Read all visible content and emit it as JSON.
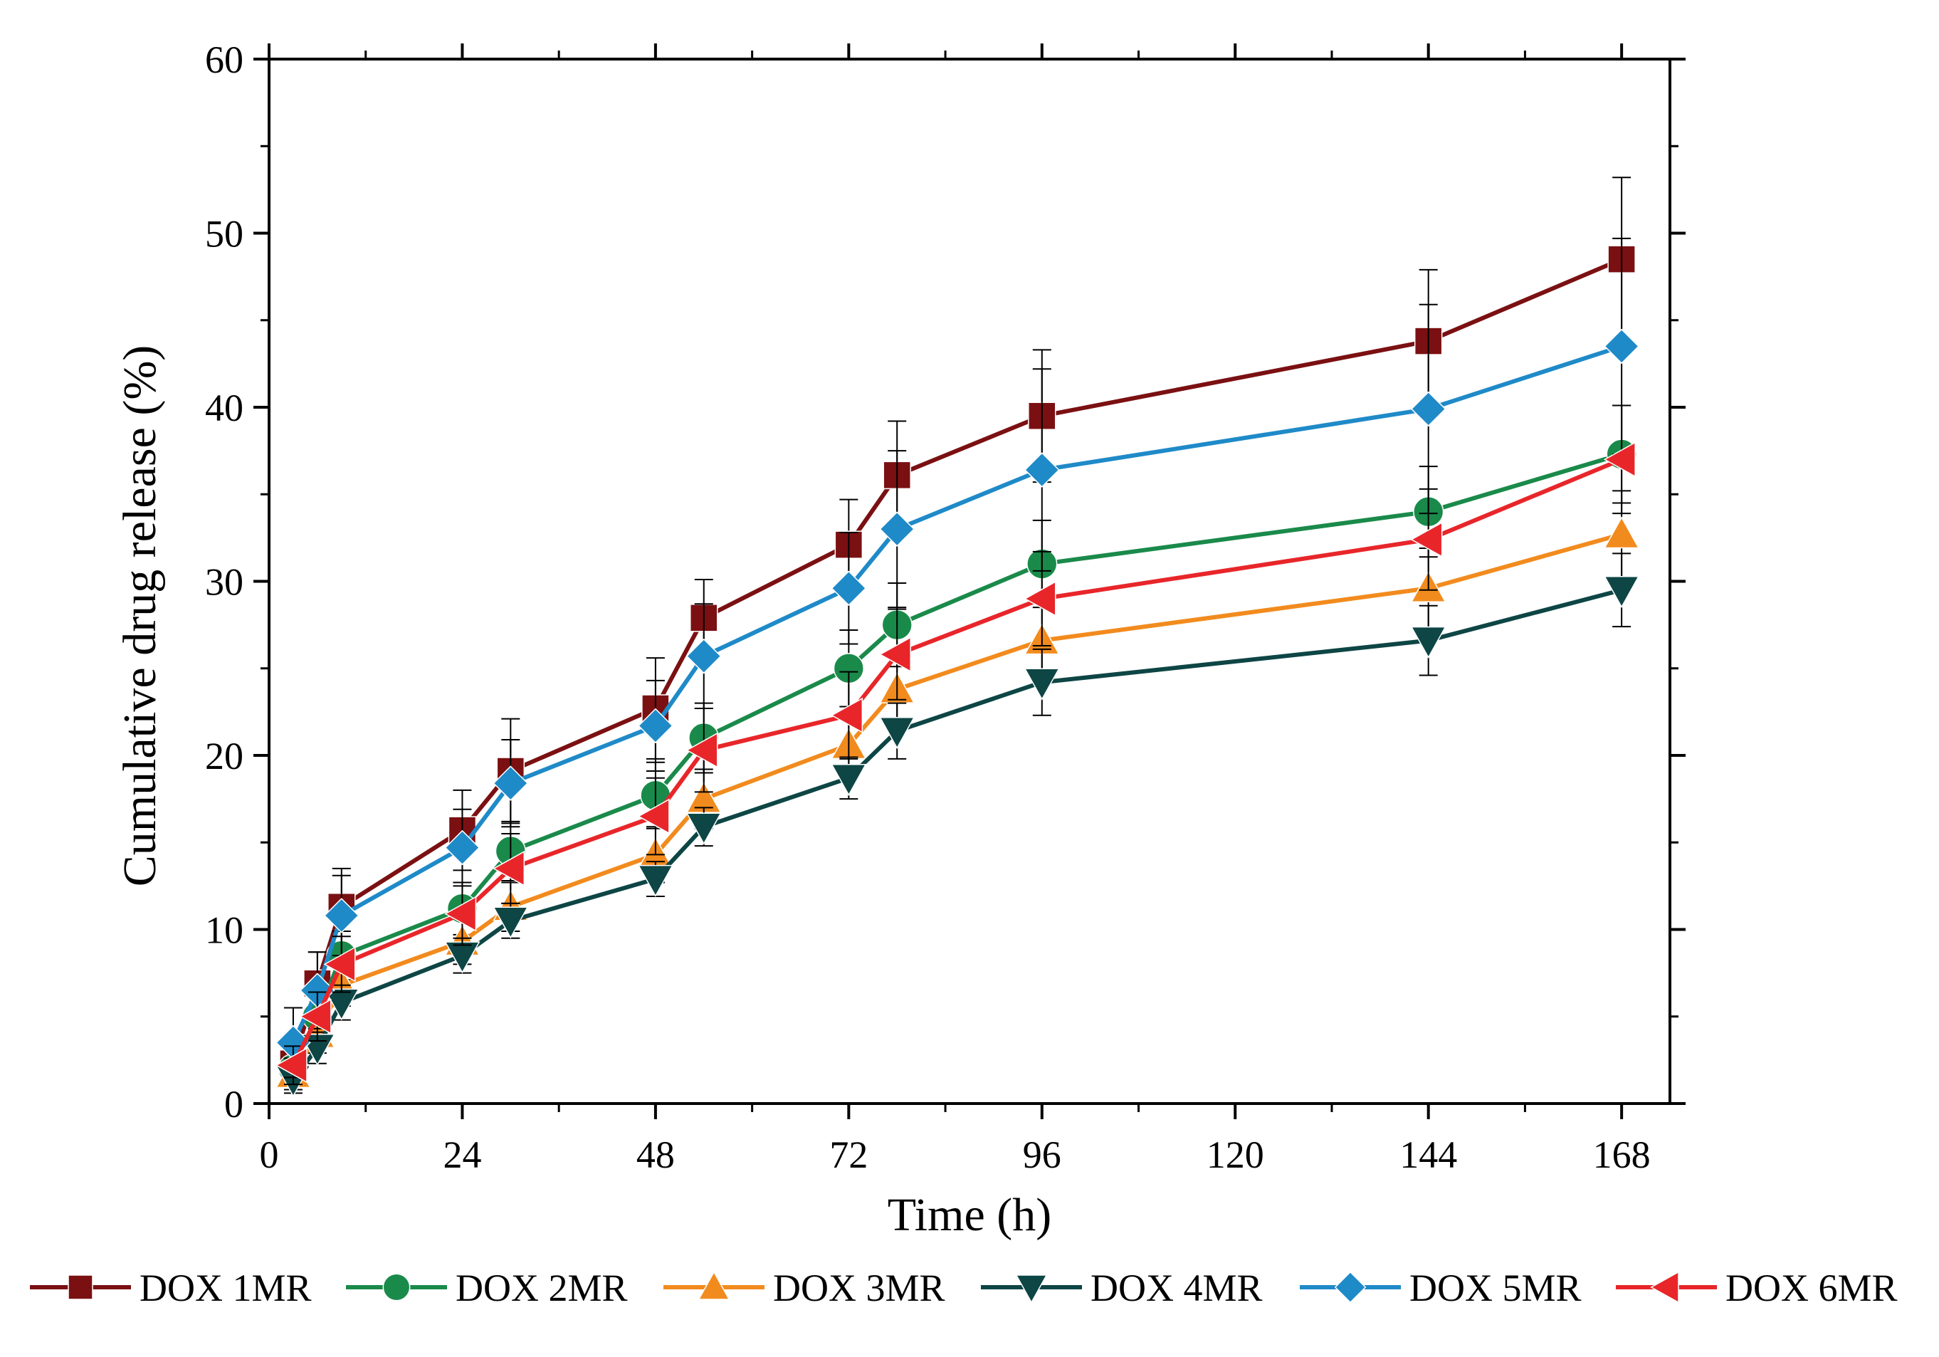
{
  "chart_data": {
    "type": "line",
    "title": "",
    "xlabel": "Time (h)",
    "ylabel": "Cumulative drug release (%)",
    "xlim": [
      0,
      174
    ],
    "ylim": [
      0,
      60
    ],
    "xticks": [
      0,
      24,
      48,
      72,
      96,
      120,
      144,
      168
    ],
    "yticks": [
      0,
      10,
      20,
      30,
      40,
      50,
      60
    ],
    "xtick_labels": [
      "0",
      "24",
      "48",
      "72",
      "96",
      "120",
      "144",
      "168"
    ],
    "ytick_labels": [
      "0",
      "10",
      "20",
      "30",
      "40",
      "50",
      "60"
    ],
    "grid": false,
    "legend_position": "bottom",
    "x": [
      3,
      6,
      9,
      24,
      30,
      48,
      54,
      72,
      78,
      96,
      144,
      168
    ],
    "series": [
      {
        "name": "DOX 1MR",
        "color": "#7b1012",
        "marker": "square",
        "values": [
          2.3,
          6.9,
          11.3,
          15.7,
          19.1,
          22.7,
          27.9,
          32.1,
          36.1,
          39.5,
          43.8,
          48.5
        ],
        "errors": [
          1.2,
          1.8,
          2.2,
          2.3,
          3.0,
          2.9,
          2.2,
          2.6,
          3.1,
          3.8,
          4.1,
          4.7
        ]
      },
      {
        "name": "DOX 2MR",
        "color": "#1a8a4a",
        "marker": "circle",
        "values": [
          2.0,
          5.0,
          8.5,
          11.2,
          14.5,
          17.7,
          21.0,
          25.0,
          27.5,
          31.0,
          34.0,
          37.3
        ],
        "errors": [
          1.0,
          1.3,
          1.4,
          1.5,
          1.7,
          1.9,
          2.0,
          2.2,
          2.4,
          2.5,
          2.6,
          2.8
        ]
      },
      {
        "name": "DOX 3MR",
        "color": "#f28b1e",
        "marker": "triangle-up",
        "values": [
          1.7,
          4.0,
          6.8,
          9.3,
          11.3,
          14.3,
          17.5,
          20.6,
          23.8,
          26.6,
          29.6,
          32.7
        ],
        "errors": [
          0.9,
          1.1,
          1.2,
          1.3,
          1.4,
          1.6,
          1.7,
          1.9,
          2.0,
          2.2,
          2.3,
          2.5
        ]
      },
      {
        "name": "DOX 4MR",
        "color": "#0e4545",
        "marker": "triangle-down",
        "values": [
          1.4,
          3.2,
          5.8,
          8.5,
          10.5,
          12.9,
          15.9,
          18.7,
          21.4,
          24.2,
          26.6,
          29.5
        ],
        "errors": [
          0.8,
          0.9,
          1.0,
          1.0,
          1.0,
          1.0,
          1.1,
          1.2,
          1.6,
          1.9,
          2.0,
          2.1
        ]
      },
      {
        "name": "DOX 5MR",
        "color": "#1f8ac8",
        "marker": "diamond",
        "values": [
          3.5,
          6.5,
          10.8,
          14.7,
          18.4,
          21.7,
          25.7,
          29.6,
          33.0,
          36.4,
          39.9,
          43.5
        ],
        "errors": [
          2.0,
          2.2,
          2.3,
          2.2,
          2.5,
          2.6,
          3.0,
          3.2,
          4.5,
          5.8,
          6.0,
          6.2
        ]
      },
      {
        "name": "DOX 6MR",
        "color": "#e8262a",
        "marker": "triangle-left",
        "values": [
          2.2,
          5.0,
          8.0,
          10.9,
          13.5,
          16.5,
          20.3,
          22.3,
          25.8,
          29.0,
          32.4,
          37.0
        ],
        "errors": [
          1.1,
          1.4,
          1.6,
          1.8,
          2.0,
          2.2,
          2.4,
          2.5,
          2.6,
          2.7,
          2.9,
          3.1
        ]
      }
    ]
  }
}
